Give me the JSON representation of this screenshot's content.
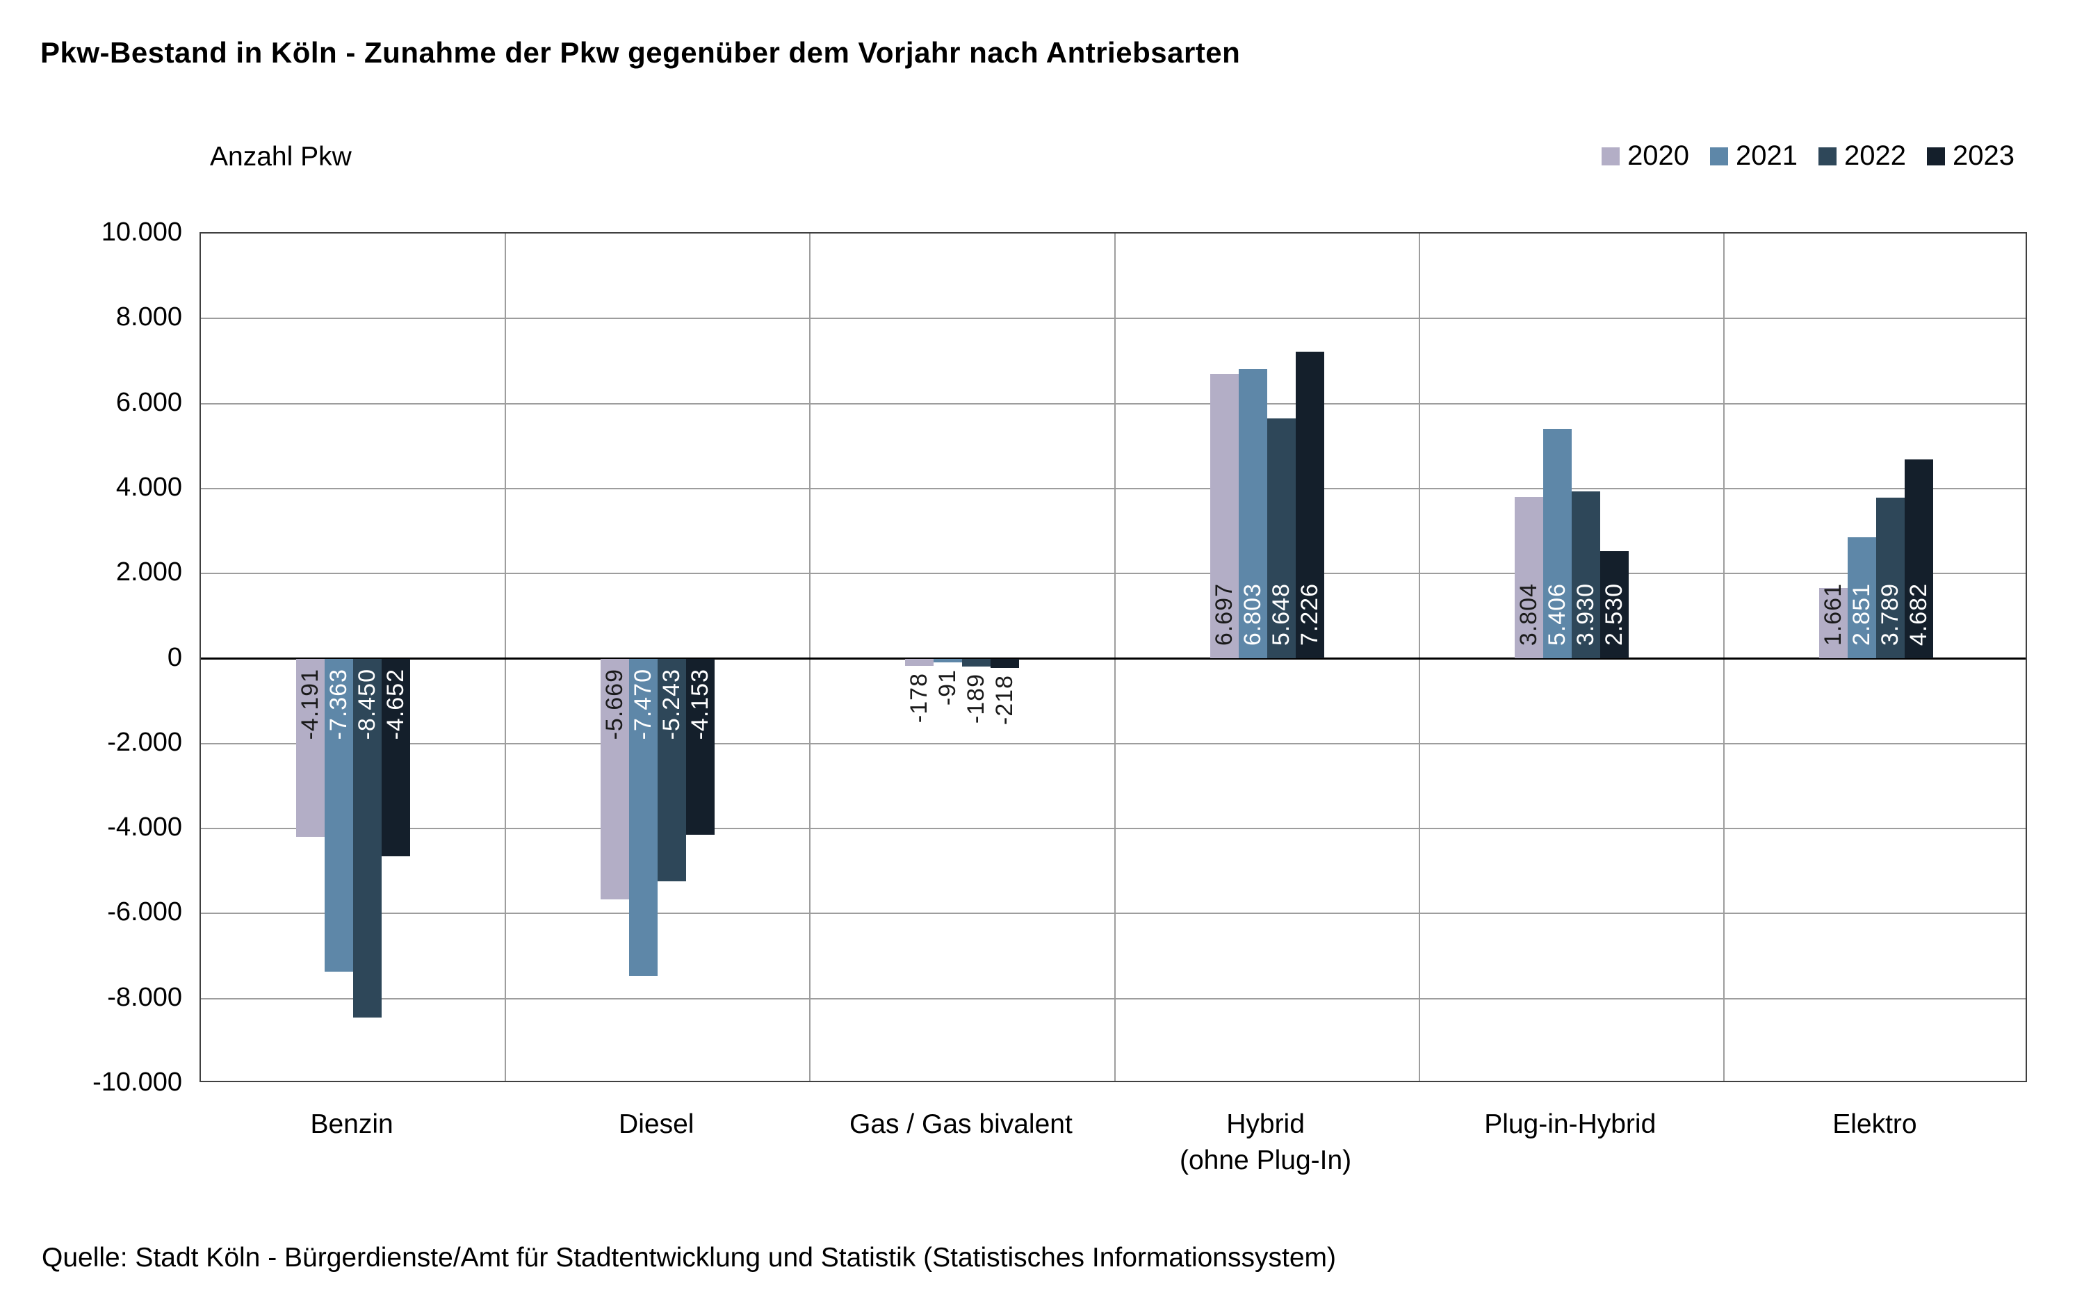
{
  "title": "Pkw-Bestand in Köln - Zunahme der Pkw gegenüber dem Vorjahr nach Antriebsarten",
  "y_axis_title": "Anzahl Pkw",
  "source": "Quelle: Stadt Köln - Bürgerdienste/Amt für Stadtentwicklung und Statistik (Statistisches Informationssystem)",
  "chart_data": {
    "type": "bar",
    "title": "Pkw-Bestand in Köln - Zunahme der Pkw gegenüber dem Vorjahr nach Antriebsarten",
    "ylabel": "Anzahl Pkw",
    "ylim": [
      -10000,
      10000
    ],
    "ytick_step": 2000,
    "grid": true,
    "legend_position": "top-right",
    "categories": [
      "Benzin",
      "Diesel",
      "Gas / Gas bivalent",
      "Hybrid\n(ohne Plug-In)",
      "Plug-in-Hybrid",
      "Elektro"
    ],
    "ytick_values": [
      10000,
      8000,
      6000,
      4000,
      2000,
      0,
      -2000,
      -4000,
      -6000,
      -8000,
      -10000
    ],
    "ytick_labels": [
      "10.000",
      "8.000",
      "6.000",
      "4.000",
      "2.000",
      "0",
      "-2.000",
      "-4.000",
      "-6.000",
      "-8.000",
      "-10.000"
    ],
    "series": [
      {
        "name": "2020",
        "color": "#b3aec6",
        "label_color": "#1a1a1a",
        "values": [
          -4191,
          -5669,
          -178,
          6697,
          3804,
          1661
        ],
        "labels": [
          "-4.191",
          "-5.669",
          "-178",
          "6.697",
          "3.804",
          "1.661"
        ]
      },
      {
        "name": "2021",
        "color": "#5e87a8",
        "label_color": "#ffffff",
        "values": [
          -7363,
          -7470,
          -91,
          6803,
          5406,
          2851
        ],
        "labels": [
          "-7.363",
          "-7.470",
          "-91",
          "6.803",
          "5.406",
          "2.851"
        ]
      },
      {
        "name": "2022",
        "color": "#2e4759",
        "label_color": "#ffffff",
        "values": [
          -8450,
          -5243,
          -189,
          5648,
          3930,
          3789
        ],
        "labels": [
          "-8.450",
          "-5.243",
          "-189",
          "5.648",
          "3.930",
          "3.789"
        ]
      },
      {
        "name": "2023",
        "color": "#141f2b",
        "label_color": "#ffffff",
        "values": [
          -4652,
          -4153,
          -218,
          7226,
          2530,
          4682
        ],
        "labels": [
          "-4.652",
          "-4.153",
          "-218",
          "7.226",
          "2.530",
          "4.682"
        ]
      }
    ]
  }
}
